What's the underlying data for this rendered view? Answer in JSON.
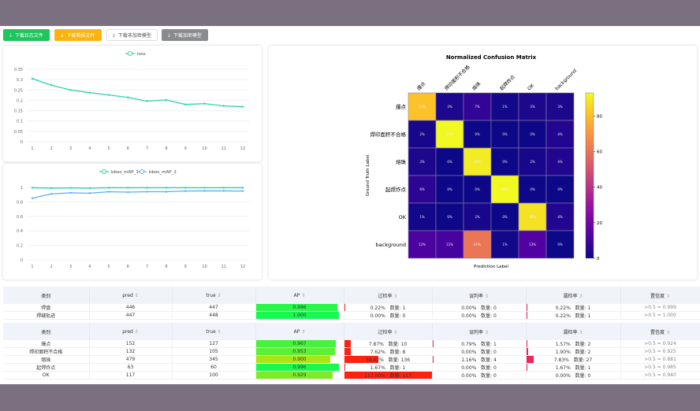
{
  "toolbar": {
    "buttons": [
      {
        "label": "下载日志文件",
        "icon": "download-icon",
        "bg": "#1ec45c",
        "color": "#fff"
      },
      {
        "label": "下载简报文件",
        "icon": "download-icon",
        "bg": "#fbb40e",
        "color": "#fff"
      },
      {
        "label": "下载非加密模型",
        "icon": "download-icon",
        "bg": "#ffffff",
        "color": "#555"
      },
      {
        "label": "下载加密模型",
        "icon": "download-icon",
        "bg": "#8a8b8f",
        "color": "#fff"
      }
    ]
  },
  "chart_data": [
    {
      "type": "line",
      "x": [
        1,
        2,
        3,
        4,
        5,
        6,
        7,
        8,
        9,
        10,
        11,
        12
      ],
      "ylim": [
        0,
        0.35
      ],
      "yticks": [
        "0",
        "0.05",
        "0.1",
        "0.15",
        "0.2",
        "0.25",
        "0.3",
        "0.35"
      ],
      "legend_position": "top",
      "grid": true,
      "series": [
        {
          "name": "loss",
          "color": "#2ed3a6",
          "values": [
            0.305,
            0.273,
            0.25,
            0.237,
            0.226,
            0.214,
            0.196,
            0.202,
            0.18,
            0.184,
            0.173,
            0.169
          ]
        }
      ]
    },
    {
      "type": "line",
      "x": [
        1,
        2,
        3,
        4,
        5,
        6,
        7,
        8,
        9,
        10,
        11,
        12
      ],
      "ylim": [
        0,
        1
      ],
      "yticks": [
        "0",
        "0.2",
        "0.4",
        "0.6",
        "0.8",
        "1"
      ],
      "legend_position": "top",
      "grid": true,
      "series": [
        {
          "name": "bbox_mAP_1",
          "color": "#2ed3a6",
          "values": [
            0.995,
            0.99,
            0.993,
            0.99,
            0.995,
            0.995,
            0.995,
            0.995,
            0.995,
            0.995,
            0.995,
            0.995
          ]
        },
        {
          "name": "bbox_mAP_2",
          "color": "#5aaef0",
          "values": [
            0.85,
            0.91,
            0.925,
            0.92,
            0.94,
            0.935,
            0.94,
            0.94,
            0.95,
            0.952,
            0.952,
            0.95
          ]
        }
      ]
    },
    {
      "type": "heatmap",
      "title": "Normalized Confusion Matrix",
      "xlabel": "Prediction Label",
      "ylabel": "Ground Truth Label",
      "labels": [
        "爆点",
        "焊印面积不合格",
        "熔珠",
        "起焊炸点",
        "OK",
        "background"
      ],
      "values": [
        [
          81,
          3,
          7,
          1,
          3,
          3
        ],
        [
          2,
          93,
          0,
          0,
          0,
          4
        ],
        [
          3,
          0,
          90,
          0,
          2,
          4
        ],
        [
          6,
          0,
          0,
          93,
          0,
          0
        ],
        [
          1,
          0,
          2,
          0,
          88,
          4
        ],
        [
          12,
          11,
          61,
          1,
          13,
          0
        ]
      ],
      "colorbar": {
        "min": 0,
        "max": 93,
        "ticks": [
          "0",
          "20",
          "40",
          "60",
          "80"
        ],
        "colormap": "plasma"
      }
    }
  ],
  "table_headers": [
    "类别",
    "pred",
    "true",
    "AP",
    "过检率",
    "误判率",
    "漏检率",
    "置信度"
  ],
  "count_label": "数量:",
  "table1": [
    {
      "cls": "焊盘",
      "pred": "446",
      "true": "447",
      "ap": "0.986",
      "over": "0.22%",
      "over_n": "1",
      "mis": "0.00%",
      "mis_n": "0",
      "miss": "0.22%",
      "miss_n": "1",
      "conf": ">0.5 = 0.999"
    },
    {
      "cls": "焊缝轨迹",
      "pred": "447",
      "true": "448",
      "ap": "1.000",
      "over": "0.00%",
      "over_n": "0",
      "mis": "0.00%",
      "mis_n": "0",
      "miss": "0.22%",
      "miss_n": "1",
      "conf": ">0.5 = 1.000"
    }
  ],
  "table2": [
    {
      "cls": "爆点",
      "pred": "152",
      "true": "127",
      "ap": "0.967",
      "over": "7.87%",
      "over_n": "10",
      "mis": "0.79%",
      "mis_n": "1",
      "miss": "1.57%",
      "miss_n": "2",
      "conf": ">0.5 = 0.924"
    },
    {
      "cls": "焊印面积不合格",
      "pred": "132",
      "true": "105",
      "ap": "0.953",
      "over": "7.62%",
      "over_n": "8",
      "mis": "0.00%",
      "mis_n": "0",
      "miss": "1.90%",
      "miss_n": "2",
      "conf": ">0.5 = 0.925"
    },
    {
      "cls": "熔珠",
      "pred": "479",
      "true": "345",
      "ap": "0.900",
      "over": "39.42%",
      "over_n": "136",
      "mis": "1.16%",
      "mis_n": "4",
      "miss": "7.83%",
      "miss_n": "27",
      "conf": ">0.5 = 0.881"
    },
    {
      "cls": "起焊炸点",
      "pred": "63",
      "true": "60",
      "ap": "0.996",
      "over": "1.67%",
      "over_n": "1",
      "mis": "0.00%",
      "mis_n": "0",
      "miss": "1.67%",
      "miss_n": "1",
      "conf": ">0.5 = 0.985"
    },
    {
      "cls": "OK",
      "pred": "117",
      "true": "100",
      "ap": "0.929",
      "over": "117.00%",
      "over_n": "117",
      "mis": "0.00%",
      "mis_n": "0",
      "miss": "0.00%",
      "miss_n": "0",
      "conf": ">0.5 = 0.940"
    }
  ]
}
